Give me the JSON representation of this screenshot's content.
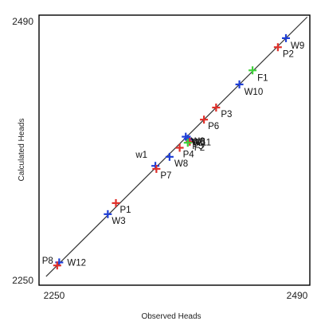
{
  "chart_data": {
    "type": "scatter",
    "title": "",
    "xlabel": "Observed Heads",
    "ylabel": "Calculated Heads",
    "xlim": [
      2250,
      2490
    ],
    "ylim": [
      2250,
      2490
    ],
    "x_ticks": [
      "2250",
      "2490"
    ],
    "y_ticks": [
      "2250",
      "2490"
    ],
    "reference_line": "1:1",
    "grid": false,
    "legend": "none",
    "colors": {
      "W": "#1f3fd6",
      "P": "#e0302a",
      "F": "#3fd13a",
      "line": "#333333",
      "frame": "#000000"
    },
    "points": [
      {
        "label": "W9",
        "group": "W",
        "x": 2479,
        "y": 2479
      },
      {
        "label": "P2",
        "group": "P",
        "x": 2471,
        "y": 2470
      },
      {
        "label": "F1",
        "group": "F",
        "x": 2446,
        "y": 2447
      },
      {
        "label": "W10",
        "group": "W",
        "x": 2433,
        "y": 2433
      },
      {
        "label": "P3",
        "group": "P",
        "x": 2410,
        "y": 2410
      },
      {
        "label": "P6",
        "group": "P",
        "x": 2398,
        "y": 2398
      },
      {
        "label": "W6",
        "group": "W",
        "x": 2380,
        "y": 2381
      },
      {
        "label": "W5",
        "group": "W",
        "x": 2382,
        "y": 2379
      },
      {
        "label": "W11",
        "group": "W",
        "x": 2384,
        "y": 2378
      },
      {
        "label": "P5",
        "group": "P",
        "x": 2384,
        "y": 2376
      },
      {
        "label": "F2",
        "group": "F",
        "x": 2382,
        "y": 2375
      },
      {
        "label": "P4",
        "group": "P",
        "x": 2374,
        "y": 2370
      },
      {
        "label": "W8",
        "group": "W",
        "x": 2364,
        "y": 2361
      },
      {
        "label": "W1",
        "group": "W",
        "x": 2350,
        "y": 2352
      },
      {
        "label": "P7",
        "group": "P",
        "x": 2351,
        "y": 2349
      },
      {
        "label": "P1",
        "group": "P",
        "x": 2311,
        "y": 2315
      },
      {
        "label": "W3",
        "group": "W",
        "x": 2303,
        "y": 2304
      },
      {
        "label": "W12",
        "group": "W",
        "x": 2255,
        "y": 2256
      },
      {
        "label": "P8",
        "group": "P",
        "x": 2253,
        "y": 2253
      }
    ],
    "visible_labels": [
      {
        "text": "W9",
        "point": "W9",
        "anchor": "start",
        "dx": 6,
        "dy": 13
      },
      {
        "text": "P2",
        "point": "P2",
        "anchor": "start",
        "dx": 6,
        "dy": 12
      },
      {
        "text": "F1",
        "point": "F1",
        "anchor": "start",
        "dx": 6,
        "dy": 13
      },
      {
        "text": "W10",
        "point": "W10",
        "anchor": "start",
        "dx": 6,
        "dy": 13
      },
      {
        "text": "P3",
        "point": "P3",
        "anchor": "start",
        "dx": 6,
        "dy": 12
      },
      {
        "text": "P6",
        "point": "P6",
        "anchor": "start",
        "dx": 5,
        "dy": 12
      },
      {
        "text": "W6",
        "point": "W5",
        "anchor": "start",
        "dx": 4,
        "dy": 7
      },
      {
        "text": "W5",
        "point": "W5",
        "anchor": "start",
        "dx": 5,
        "dy": 8
      },
      {
        "text": "W11",
        "point": "W11",
        "anchor": "start",
        "dx": 4,
        "dy": 7
      },
      {
        "text": "P5",
        "point": "P5",
        "anchor": "start",
        "dx": 3,
        "dy": 9
      },
      {
        "text": "F2",
        "point": "F2",
        "anchor": "start",
        "dx": 8,
        "dy": 10
      },
      {
        "text": "P4",
        "point": "P4",
        "anchor": "start",
        "dx": 4,
        "dy": 12
      },
      {
        "text": "W8",
        "point": "W8",
        "anchor": "start",
        "dx": 6,
        "dy": 12
      },
      {
        "text": "w1",
        "point": "W1",
        "anchor": "end",
        "dx": -10,
        "dy": -10
      },
      {
        "text": "P7",
        "point": "P7",
        "anchor": "start",
        "dx": 5,
        "dy": 12
      },
      {
        "text": "P1",
        "point": "P1",
        "anchor": "start",
        "dx": 5,
        "dy": 12
      },
      {
        "text": "W3",
        "point": "W3",
        "anchor": "start",
        "dx": 5,
        "dy": 12
      },
      {
        "text": "W12",
        "point": "W12",
        "anchor": "start",
        "dx": 10,
        "dy": 4
      },
      {
        "text": "P8",
        "point": "P8",
        "anchor": "end",
        "dx": -5,
        "dy": -2
      }
    ]
  }
}
